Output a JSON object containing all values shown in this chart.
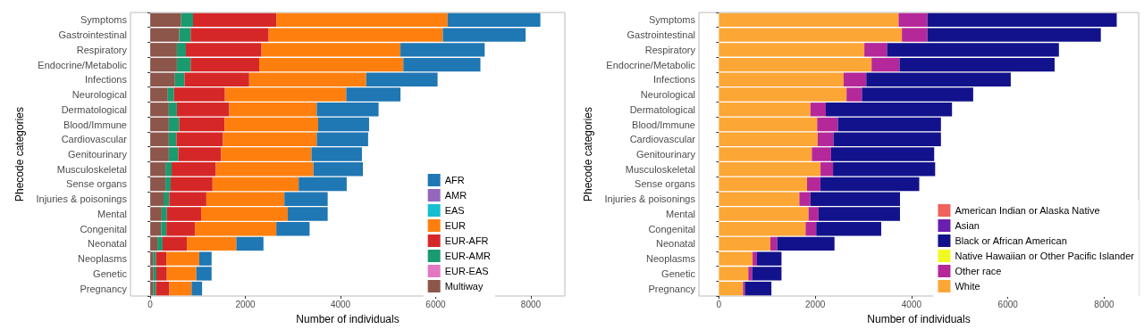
{
  "chart_data": [
    {
      "type": "bar",
      "orientation": "horizontal",
      "stacked": true,
      "xlabel": "Number of individuals",
      "ylabel": "Phecode categories",
      "categories": [
        "Symptoms",
        "Gastrointestinal",
        "Respiratory",
        "Endocrine/Metabolic",
        "Infections",
        "Neurological",
        "Dermatological",
        "Blood/Immune",
        "Cardiovascular",
        "Genitourinary",
        "Musculoskeletal",
        "Sense organs",
        "Injuries & poisonings",
        "Mental",
        "Congenital",
        "Neonatal",
        "Neoplasms",
        "Genetic",
        "Pregnancy"
      ],
      "xlim": [
        -415,
        8715
      ],
      "xticks": [
        0,
        2000,
        4000,
        6000,
        8000
      ],
      "grid": false,
      "legend": "bottom right",
      "series": [
        {
          "name": "Multiway",
          "color": "#8c564b",
          "values": [
            650,
            610,
            560,
            560,
            520,
            370,
            390,
            390,
            390,
            390,
            320,
            320,
            280,
            240,
            230,
            150,
            60,
            70,
            60
          ]
        },
        {
          "name": "EUR-EAS",
          "color": "#e377c2",
          "values": [
            0,
            0,
            0,
            0,
            0,
            0,
            0,
            0,
            0,
            0,
            0,
            0,
            0,
            0,
            0,
            0,
            0,
            0,
            0
          ]
        },
        {
          "name": "EUR-AMR",
          "color": "#1a9a6f",
          "values": [
            250,
            240,
            190,
            290,
            200,
            130,
            170,
            220,
            160,
            200,
            130,
            110,
            120,
            110,
            110,
            110,
            60,
            60,
            60
          ]
        },
        {
          "name": "EUR-AFR",
          "color": "#d62728",
          "values": [
            1750,
            1640,
            1590,
            1440,
            1360,
            1070,
            1100,
            950,
            980,
            900,
            930,
            880,
            780,
            720,
            600,
            510,
            220,
            220,
            280
          ]
        },
        {
          "name": "EUR",
          "color": "#ff7f0e",
          "values": [
            3600,
            3660,
            2920,
            3030,
            2460,
            2550,
            1840,
            1970,
            1970,
            1900,
            2050,
            1810,
            1640,
            1820,
            1710,
            1040,
            690,
            620,
            470
          ]
        },
        {
          "name": "EAS",
          "color": "#17becf",
          "values": [
            0,
            0,
            0,
            0,
            0,
            0,
            0,
            0,
            0,
            0,
            0,
            0,
            0,
            0,
            0,
            0,
            0,
            0,
            0
          ]
        },
        {
          "name": "AMR",
          "color": "#9467bd",
          "values": [
            0,
            0,
            0,
            0,
            0,
            0,
            0,
            0,
            0,
            0,
            0,
            0,
            0,
            0,
            0,
            0,
            0,
            0,
            0
          ]
        },
        {
          "name": "AFR",
          "color": "#1f77b4",
          "values": [
            1950,
            1740,
            1770,
            1620,
            1500,
            1140,
            1300,
            1070,
            1080,
            1060,
            1040,
            1010,
            910,
            840,
            700,
            570,
            260,
            320,
            220
          ]
        }
      ]
    },
    {
      "type": "bar",
      "orientation": "horizontal",
      "stacked": true,
      "xlabel": "Number of individuals",
      "ylabel": "Phecode categories",
      "categories": [
        "Symptoms",
        "Gastrointestinal",
        "Respiratory",
        "Endocrine/Metabolic",
        "Infections",
        "Neurological",
        "Dermatological",
        "Blood/Immune",
        "Cardiovascular",
        "Genitourinary",
        "Musculoskeletal",
        "Sense organs",
        "Injuries & poisonings",
        "Mental",
        "Congenital",
        "Neonatal",
        "Neoplasms",
        "Genetic",
        "Pregnancy"
      ],
      "xlim": [
        -415,
        8715
      ],
      "xticks": [
        0,
        2000,
        4000,
        6000,
        8000
      ],
      "grid": false,
      "legend": "bottom right",
      "series": [
        {
          "name": "White",
          "color": "#fca636",
          "values": [
            3730,
            3800,
            3020,
            3170,
            2590,
            2650,
            1900,
            2040,
            2050,
            1930,
            2110,
            1830,
            1670,
            1860,
            1800,
            1070,
            700,
            610,
            500
          ]
        },
        {
          "name": "Other race",
          "color": "#b5289a",
          "values": [
            600,
            530,
            470,
            580,
            470,
            320,
            320,
            430,
            330,
            400,
            260,
            280,
            230,
            210,
            220,
            140,
            90,
            80,
            40
          ]
        },
        {
          "name": "Native Hawaiian or Other Pacific Islander",
          "color": "#f0f921",
          "values": [
            0,
            0,
            0,
            0,
            0,
            0,
            0,
            0,
            0,
            0,
            0,
            0,
            0,
            0,
            0,
            0,
            0,
            0,
            0
          ]
        },
        {
          "name": "Black or African American",
          "color": "#12128c",
          "values": [
            3930,
            3600,
            3570,
            3220,
            3000,
            2310,
            2620,
            2140,
            2230,
            2140,
            2120,
            2050,
            1860,
            1690,
            1350,
            1190,
            510,
            610,
            550
          ]
        },
        {
          "name": "Asian",
          "color": "#6a1fb0",
          "values": [
            0,
            0,
            0,
            0,
            0,
            0,
            0,
            0,
            0,
            0,
            0,
            0,
            0,
            0,
            0,
            0,
            0,
            0,
            0
          ]
        },
        {
          "name": "American Indian or Alaska Native",
          "color": "#f0605d",
          "values": [
            0,
            0,
            0,
            0,
            0,
            0,
            0,
            0,
            0,
            0,
            0,
            0,
            0,
            0,
            0,
            0,
            0,
            0,
            0
          ]
        }
      ]
    }
  ]
}
